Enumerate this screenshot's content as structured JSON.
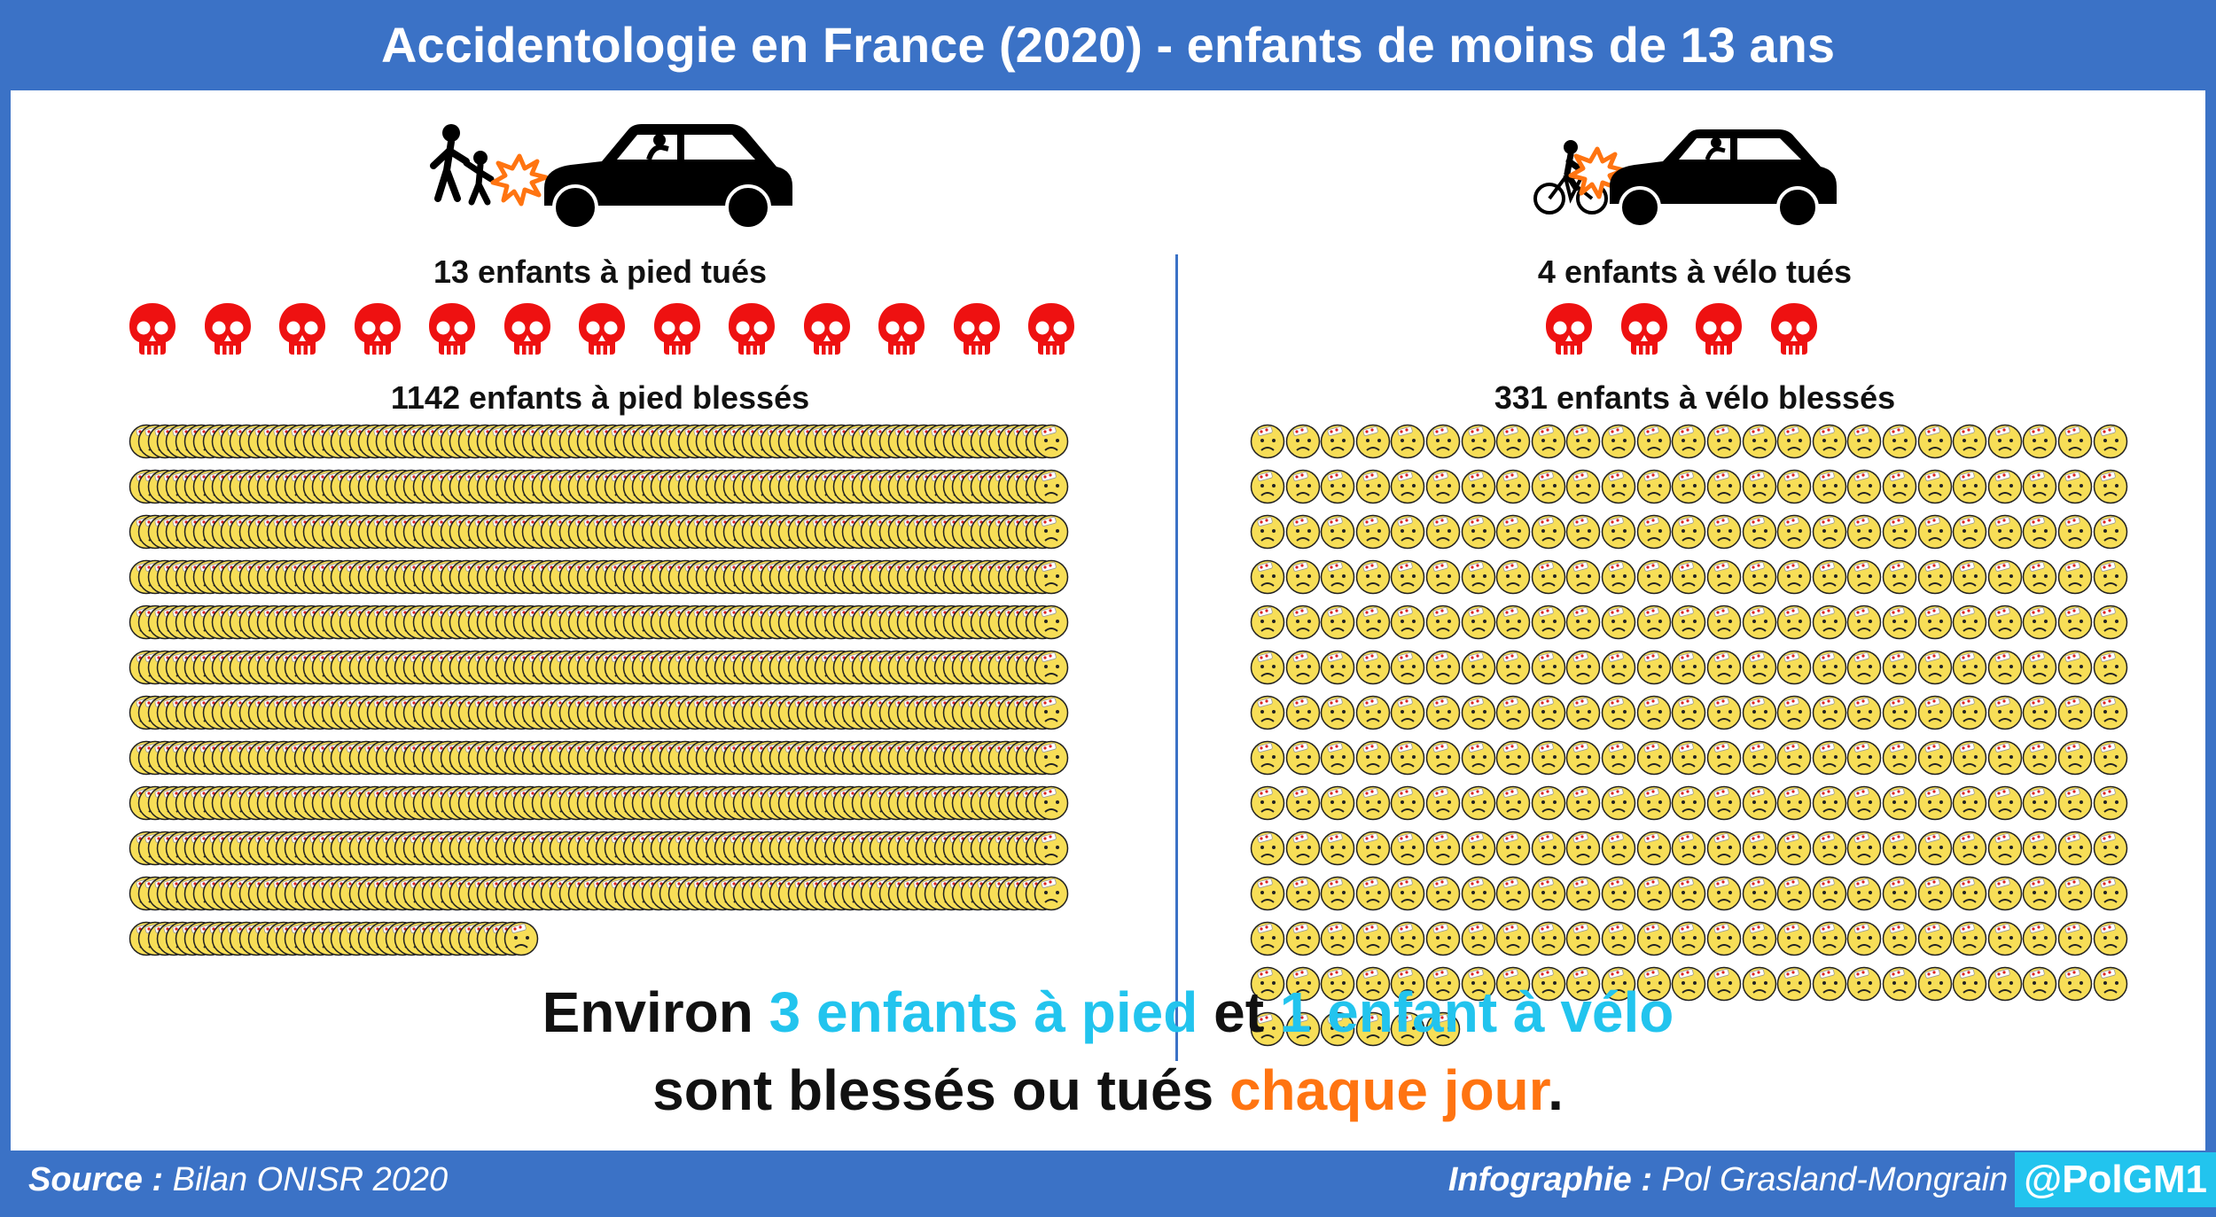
{
  "header": {
    "title": "Accidentologie en France (2020) - enfants de moins de 13 ans"
  },
  "colors": {
    "brand_blue": "#3b72c6",
    "skull_red": "#ee1111",
    "highlight_cyan": "#22c4ee",
    "highlight_orange": "#ff7411",
    "face_yellow": "#f7de57"
  },
  "left": {
    "killed_label": "13 enfants à pied tués",
    "killed_count": 13,
    "injured_label": "1142 enfants à pied blessés",
    "injured_count": 1142,
    "illustration_icon": "pedestrians-hit-by-car-icon"
  },
  "right": {
    "killed_label": "4 enfants à vélo tués",
    "killed_count": 4,
    "injured_label": "331 enfants à vélo blessés",
    "injured_count": 331,
    "illustration_icon": "cyclist-hit-by-car-icon"
  },
  "summary": {
    "line1_a": "Environ ",
    "line1_b": "3 enfants à pied",
    "line1_c": " et ",
    "line1_d": "1 enfant à vélo",
    "line2_a": "sont blessés ou tués ",
    "line2_b": "chaque jour",
    "line2_c": "."
  },
  "footer": {
    "source_label": "Source :",
    "source_value": "Bilan ONISR 2020",
    "credit_label": "Infographie :",
    "credit_value": "Pol Grasland-Mongrain",
    "handle": "@PolGM1"
  }
}
